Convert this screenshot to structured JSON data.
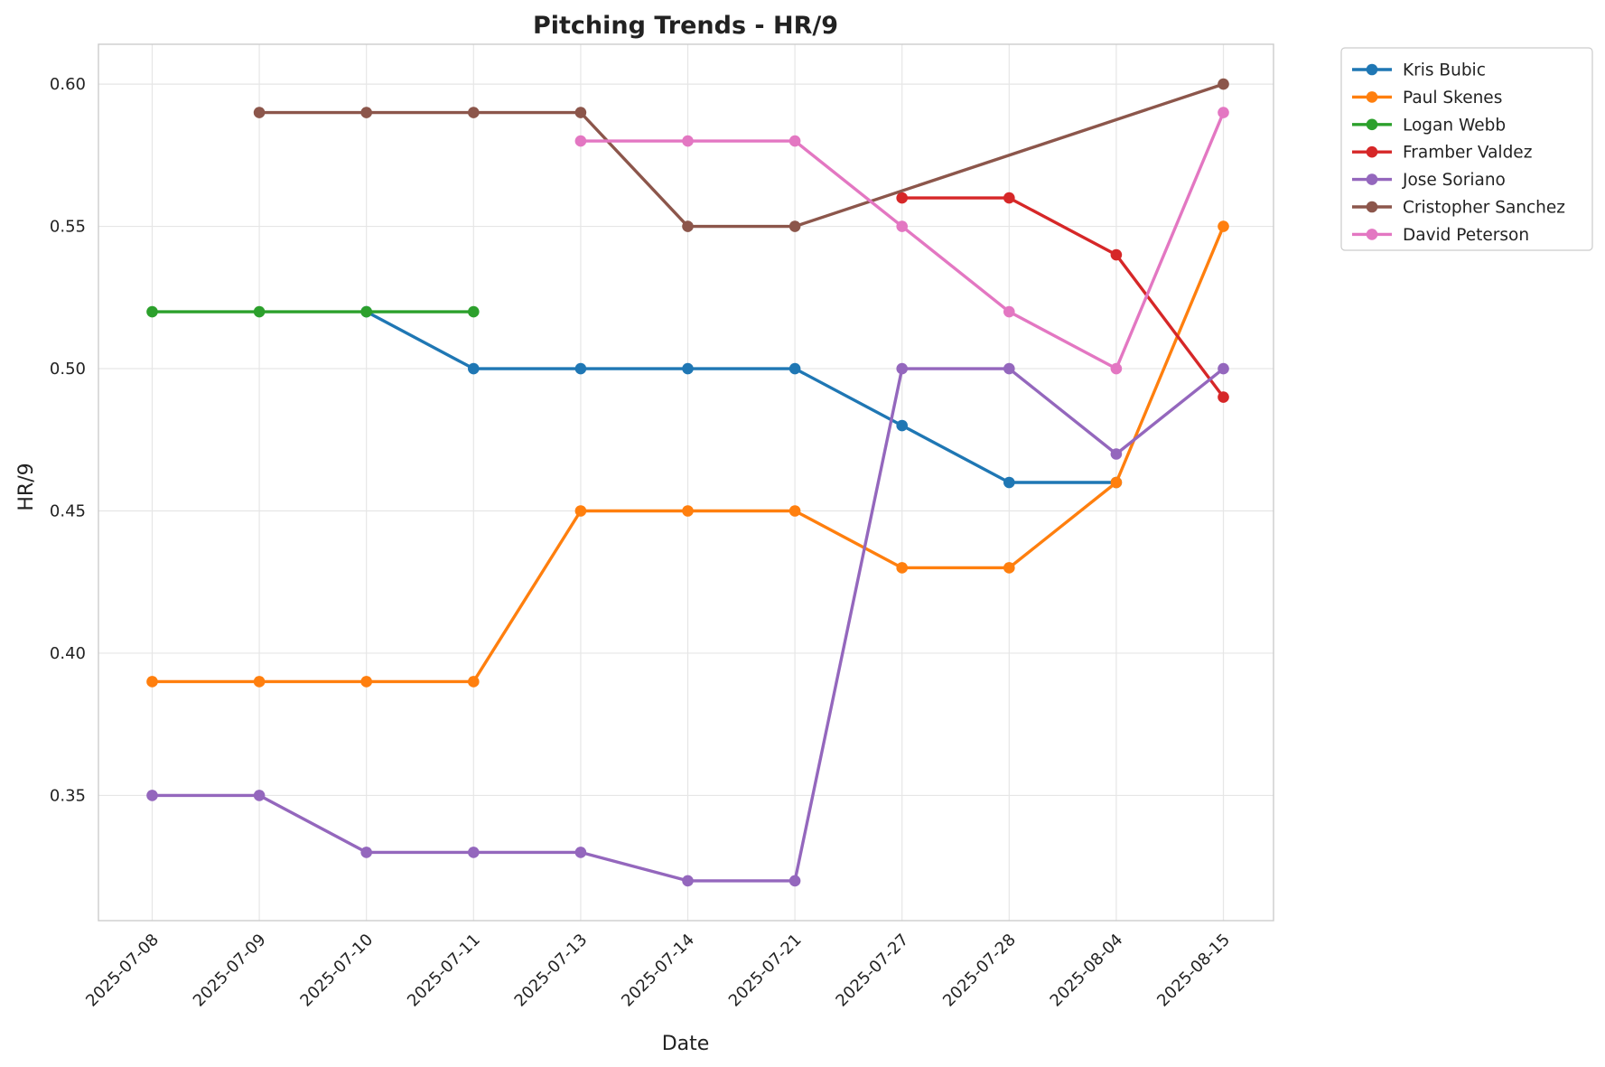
{
  "chart_data": {
    "type": "line",
    "title": "Pitching Trends - HR/9",
    "xlabel": "Date",
    "ylabel": "HR/9",
    "categories": [
      "2025-07-08",
      "2025-07-09",
      "2025-07-10",
      "2025-07-11",
      "2025-07-13",
      "2025-07-14",
      "2025-07-21",
      "2025-07-27",
      "2025-07-28",
      "2025-08-04",
      "2025-08-15"
    ],
    "yticks": [
      0.35,
      0.4,
      0.45,
      0.5,
      0.55,
      0.6
    ],
    "ytick_labels": [
      "0.35",
      "0.40",
      "0.45",
      "0.50",
      "0.55",
      "0.60"
    ],
    "ylim": [
      0.306,
      0.614
    ],
    "grid": true,
    "legend_position": "outside-top-right",
    "series": [
      {
        "name": "Kris Bubic",
        "color": "#1f77b4",
        "values": [
          null,
          null,
          0.52,
          0.5,
          0.5,
          0.5,
          0.5,
          0.48,
          0.46,
          0.46,
          null
        ]
      },
      {
        "name": "Paul Skenes",
        "color": "#ff7f0e",
        "values": [
          0.39,
          0.39,
          0.39,
          0.39,
          0.45,
          0.45,
          0.45,
          0.43,
          0.43,
          0.46,
          0.55
        ]
      },
      {
        "name": "Logan Webb",
        "color": "#2ca02c",
        "values": [
          0.52,
          0.52,
          0.52,
          0.52,
          null,
          null,
          null,
          null,
          null,
          null,
          null
        ]
      },
      {
        "name": "Framber Valdez",
        "color": "#d62728",
        "values": [
          null,
          null,
          null,
          null,
          null,
          null,
          null,
          0.56,
          0.56,
          0.54,
          0.49
        ]
      },
      {
        "name": "Jose Soriano",
        "color": "#9467bd",
        "values": [
          0.35,
          0.35,
          0.33,
          0.33,
          0.33,
          0.32,
          0.32,
          0.5,
          0.5,
          0.47,
          0.5
        ]
      },
      {
        "name": "Cristopher Sanchez",
        "color": "#8c564b",
        "values": [
          null,
          0.59,
          0.59,
          0.59,
          0.59,
          0.55,
          0.55,
          null,
          null,
          null,
          0.6
        ]
      },
      {
        "name": "David Peterson",
        "color": "#e377c2",
        "values": [
          null,
          null,
          null,
          null,
          0.58,
          0.58,
          0.58,
          0.55,
          0.52,
          0.5,
          0.59
        ]
      }
    ]
  }
}
